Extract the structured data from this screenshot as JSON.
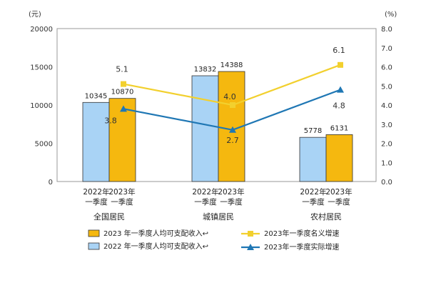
{
  "chart_data": {
    "type": "bar",
    "left_unit": "(元)",
    "right_unit": "(%)",
    "left_ticks": [
      "20000",
      "15000",
      "10000",
      "5000",
      "0"
    ],
    "right_ticks": [
      "8.0",
      "7.0",
      "6.0",
      "5.0",
      "4.0",
      "3.0",
      "2.0",
      "1.0",
      "0.0"
    ],
    "ylim_left": [
      0,
      20000
    ],
    "ylim_right": [
      0,
      8
    ],
    "groups": [
      "全国居民",
      "城镇居民",
      "农村居民"
    ],
    "bar_year_labels": [
      "2022年",
      "2023年"
    ],
    "bar_quarter_labels": [
      "一季度",
      "一季度"
    ],
    "bar_series": [
      {
        "name": "2022 年一季度人均可支配收入",
        "color": "#a9d3f5",
        "values": [
          10345,
          13832,
          5778
        ]
      },
      {
        "name": "2023 年一季度人均可支配收入",
        "color": "#f5b80f",
        "values": [
          10870,
          14388,
          6131
        ]
      }
    ],
    "line_series": [
      {
        "name": "2023年一季度名义增速",
        "color": "#f2d02e",
        "marker": "square",
        "values": [
          5.1,
          4.0,
          6.1
        ]
      },
      {
        "name": "2023年一季度实际增速",
        "color": "#1f77b4",
        "marker": "triangle",
        "values": [
          3.8,
          2.7,
          4.8
        ]
      }
    ],
    "legend": [
      "2023 年一季度人均可支配收入↩",
      "2022 年一季度人均可支配收入↩",
      "2023年一季度名义增速",
      "2023年一季度实际增速"
    ],
    "grid": false,
    "legend_position": "bottom"
  }
}
